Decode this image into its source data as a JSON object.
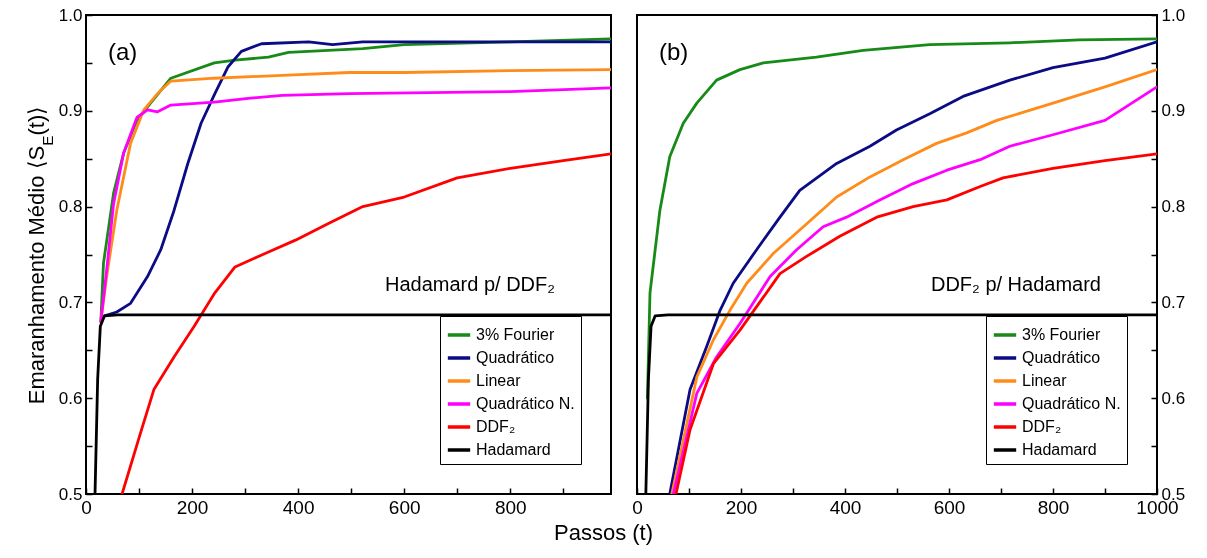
{
  "chart_data": [
    {
      "type": "line",
      "xlabel": "Passos (t)",
      "ylabel": "Emaranhamento Médio ⟨S$_{E}$(t)⟩",
      "annotations": [
        "(a)",
        "Hadamard p/ DDF₂"
      ],
      "legend": "bottom right",
      "grid": false,
      "xlim": [
        0,
        990
      ],
      "ylim": [
        0.5,
        1.0
      ],
      "xticks": [
        0,
        {
          "value": 100,
          "label": null
        },
        200,
        {
          "value": 300,
          "label": null
        },
        400,
        {
          "value": 500,
          "label": null
        },
        600,
        {
          "value": 700,
          "label": null
        },
        800,
        {
          "value": 900,
          "label": null
        }
      ],
      "yticks": [
        0.5,
        {
          "value": 0.55,
          "label": null
        },
        0.6,
        {
          "value": 0.65,
          "label": null
        },
        0.7,
        {
          "value": 0.75,
          "label": null
        },
        0.8,
        {
          "value": 0.85,
          "label": null
        },
        0.9,
        {
          "value": 0.95,
          "label": null
        },
        {
          "value": 1,
          "label": "1.0"
        }
      ],
      "series": [
        {
          "name": "3% Fourier",
          "color": "#178a17",
          "x": [
            28,
            33,
            52,
            71,
            96,
            116,
            160,
            242,
            281,
            344,
            382,
            522,
            600,
            800,
            990
          ],
          "values": [
            0.68,
            0.741,
            0.814,
            0.856,
            0.89,
            0.904,
            0.934,
            0.95,
            0.953,
            0.956,
            0.961,
            0.965,
            0.969,
            0.972,
            0.975
          ]
        },
        {
          "name": "Quadrático",
          "color": "#0b0b85",
          "x": [
            35,
            58,
            84,
            116,
            141,
            166,
            192,
            217,
            243,
            268,
            293,
            331,
            420,
            465,
            522,
            700,
            990
          ],
          "values": [
            0.686,
            0.69,
            0.699,
            0.727,
            0.755,
            0.796,
            0.845,
            0.887,
            0.918,
            0.946,
            0.962,
            0.97,
            0.972,
            0.969,
            0.972,
            0.972,
            0.972
          ]
        },
        {
          "name": "Linear",
          "color": "#ff8c1a",
          "x": [
            28,
            39,
            58,
            84,
            109,
            135,
            160,
            242,
            370,
            497,
            600,
            800,
            990
          ],
          "values": [
            0.68,
            0.727,
            0.796,
            0.866,
            0.901,
            0.918,
            0.931,
            0.934,
            0.937,
            0.94,
            0.94,
            0.942,
            0.943
          ]
        },
        {
          "name": "Quadrático N.",
          "color": "#ff00ff",
          "x": [
            28,
            39,
            52,
            71,
            96,
            116,
            135,
            160,
            242,
            306,
            370,
            497,
            800,
            990
          ],
          "values": [
            0.68,
            0.734,
            0.803,
            0.856,
            0.893,
            0.901,
            0.899,
            0.906,
            0.909,
            0.913,
            0.916,
            0.918,
            0.92,
            0.924
          ]
        },
        {
          "name": "DDF₂",
          "color": "#ff0000",
          "x": [
            68,
            103,
            128,
            166,
            204,
            243,
            281,
            325,
            395,
            459,
            522,
            600,
            700,
            800,
            900,
            990
          ],
          "values": [
            0.5,
            0.564,
            0.609,
            0.643,
            0.675,
            0.71,
            0.737,
            0.748,
            0.765,
            0.783,
            0.8,
            0.81,
            0.83,
            0.84,
            0.848,
            0.855
          ]
        },
        {
          "name": "Hadamard",
          "color": "#000000",
          "x": [
            17,
            22,
            27,
            35,
            60,
            990
          ],
          "values": [
            0.5,
            0.62,
            0.675,
            0.686,
            0.687,
            0.687
          ]
        }
      ]
    },
    {
      "type": "line",
      "annotations": [
        "(b)",
        "DDF₂ p/ Hadamard"
      ],
      "legend": "bottom right",
      "grid": false,
      "xlim": [
        0,
        1000
      ],
      "ylim": [
        0.5,
        1.0
      ],
      "xticks": [
        0,
        {
          "value": 100,
          "label": null
        },
        200,
        {
          "value": 300,
          "label": null
        },
        400,
        {
          "value": 500,
          "label": null
        },
        600,
        {
          "value": 700,
          "label": null
        },
        800,
        {
          "value": 900,
          "label": null
        },
        1000
      ],
      "yticks": [
        0.5,
        {
          "value": 0.55,
          "label": null
        },
        0.6,
        {
          "value": 0.65,
          "label": null
        },
        0.7,
        {
          "value": 0.75,
          "label": null
        },
        0.8,
        {
          "value": 0.85,
          "label": null
        },
        0.9,
        {
          "value": 0.95,
          "label": null
        },
        {
          "value": 1,
          "label": "1.0"
        }
      ],
      "series": [
        {
          "name": "3% Fourier",
          "color": "#178a17",
          "x": [
            20,
            25,
            44,
            63,
            89,
            115,
            153,
            198,
            243,
            345,
            435,
            563,
            717,
            850,
            1000
          ],
          "values": [
            0.6,
            0.71,
            0.796,
            0.852,
            0.887,
            0.908,
            0.932,
            0.943,
            0.95,
            0.956,
            0.963,
            0.969,
            0.971,
            0.974,
            0.975
          ]
        },
        {
          "name": "Quadrático",
          "color": "#0b0b85",
          "x": [
            63,
            102,
            134,
            160,
            185,
            230,
            275,
            313,
            384,
            448,
            499,
            563,
            627,
            717,
            800,
            900,
            1000
          ],
          "values": [
            0.5,
            0.609,
            0.654,
            0.692,
            0.72,
            0.755,
            0.789,
            0.817,
            0.845,
            0.863,
            0.88,
            0.897,
            0.915,
            0.932,
            0.945,
            0.955,
            0.972
          ]
        },
        {
          "name": "Linear",
          "color": "#ff8c1a",
          "x": [
            67,
            115,
            147,
            179,
            211,
            262,
            320,
            384,
            448,
            512,
            576,
            634,
            692,
            800,
            900,
            1000
          ],
          "values": [
            0.5,
            0.622,
            0.661,
            0.692,
            0.72,
            0.751,
            0.779,
            0.81,
            0.831,
            0.849,
            0.866,
            0.877,
            0.89,
            0.908,
            0.925,
            0.943
          ]
        },
        {
          "name": "Quadrático N.",
          "color": "#ff00ff",
          "x": [
            70,
            115,
            153,
            198,
            256,
            307,
            358,
            403,
            467,
            531,
            596,
            660,
            717,
            800,
            900,
            1000
          ],
          "values": [
            0.5,
            0.605,
            0.643,
            0.678,
            0.727,
            0.755,
            0.779,
            0.789,
            0.807,
            0.824,
            0.838,
            0.849,
            0.863,
            0.875,
            0.89,
            0.925
          ]
        },
        {
          "name": "DDF₂",
          "color": "#ff0000",
          "x": [
            75,
            102,
            147,
            198,
            275,
            326,
            390,
            461,
            531,
            596,
            660,
            704,
            800,
            900,
            1000
          ],
          "values": [
            0.5,
            0.567,
            0.636,
            0.671,
            0.73,
            0.748,
            0.769,
            0.789,
            0.8,
            0.807,
            0.821,
            0.83,
            0.84,
            0.848,
            0.855
          ]
        },
        {
          "name": "Hadamard",
          "color": "#000000",
          "x": [
            17,
            22,
            27,
            35,
            60,
            1000
          ],
          "values": [
            0.5,
            0.62,
            0.675,
            0.686,
            0.687,
            0.687
          ]
        }
      ]
    }
  ]
}
